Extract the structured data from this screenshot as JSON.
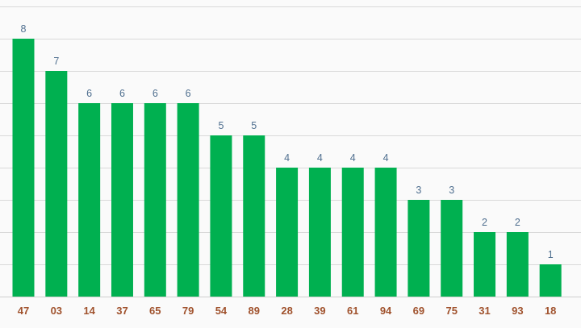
{
  "colors": {
    "bar": "#00b050",
    "value_label": "#4f6f8f",
    "category_label": "#a0522d",
    "grid": "#d9d9d9",
    "background": "#fafafa"
  },
  "chart_data": {
    "type": "bar",
    "categories": [
      "47",
      "03",
      "14",
      "37",
      "65",
      "79",
      "54",
      "89",
      "28",
      "39",
      "61",
      "94",
      "69",
      "75",
      "31",
      "93",
      "18"
    ],
    "values": [
      8,
      7,
      6,
      6,
      6,
      6,
      5,
      5,
      4,
      4,
      4,
      4,
      3,
      3,
      2,
      2,
      1
    ],
    "title": "",
    "xlabel": "",
    "ylabel": "",
    "ylim": [
      0,
      9
    ],
    "grid": true,
    "legend": "none",
    "data_labels": true
  }
}
